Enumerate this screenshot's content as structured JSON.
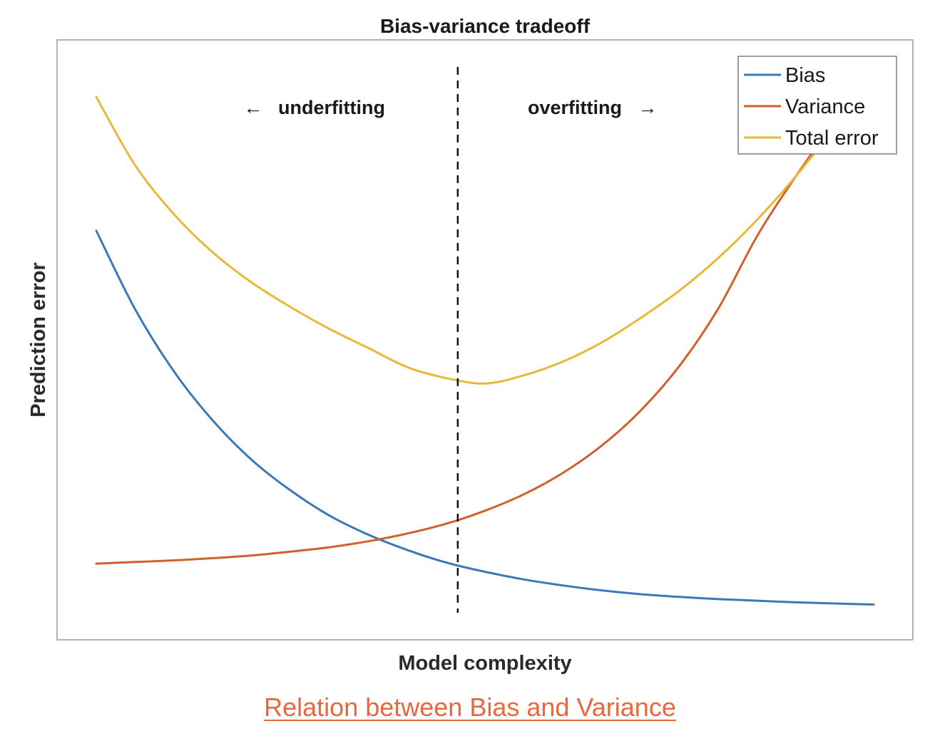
{
  "caption": {
    "link_text": "Relation between Bias and Variance",
    "color": "#e8673c"
  },
  "chart_data": {
    "type": "line",
    "title": "Bias-variance tradeoff",
    "xlabel": "Model complexity",
    "ylabel": "Prediction error",
    "xlim": [
      0,
      10
    ],
    "ylim": [
      0,
      10
    ],
    "grid": false,
    "axis_ticks": false,
    "legend_position": "top-right",
    "annotations": {
      "left": "underfitting",
      "right": "overfitting",
      "left_arrow": "←",
      "right_arrow": "→",
      "divider_x": 4.65
    },
    "x": [
      0,
      0.5,
      1,
      1.5,
      2,
      2.5,
      3,
      3.5,
      4,
      4.5,
      5,
      5.5,
      6,
      6.5,
      7,
      7.5,
      8,
      8.5,
      9,
      9.5,
      10
    ],
    "series": [
      {
        "name": "Bias",
        "color": "#3c78b8",
        "values": [
          7.0,
          5.56,
          4.42,
          3.52,
          2.8,
          2.24,
          1.78,
          1.43,
          1.15,
          0.92,
          0.75,
          0.61,
          0.5,
          0.41,
          0.34,
          0.29,
          0.25,
          0.22,
          0.19,
          0.17,
          0.15
        ]
      },
      {
        "name": "Variance",
        "color": "#d1602b",
        "values": [
          0.9,
          0.93,
          0.96,
          1.0,
          1.05,
          1.12,
          1.2,
          1.31,
          1.45,
          1.63,
          1.87,
          2.17,
          2.56,
          3.06,
          3.7,
          4.52,
          5.57,
          6.9,
          8.0,
          9.0,
          10.0
        ]
      },
      {
        "name": "Total error",
        "color": "#e6b936",
        "values": [
          9.45,
          8.2,
          7.3,
          6.6,
          6.05,
          5.6,
          5.2,
          4.85,
          4.5,
          4.3,
          4.2,
          4.35,
          4.6,
          4.95,
          5.4,
          5.9,
          6.5,
          7.2,
          8.0,
          8.9,
          9.85
        ]
      }
    ]
  }
}
